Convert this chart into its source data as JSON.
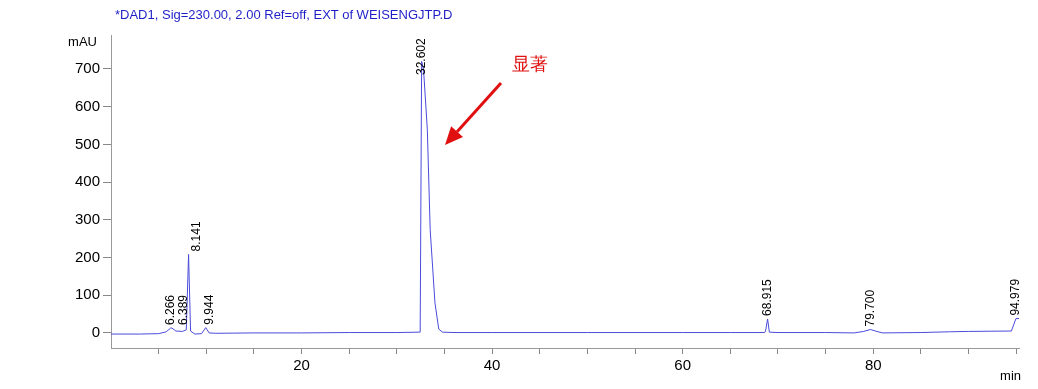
{
  "chart_data": {
    "type": "line",
    "title": "*DAD1, Sig=230.00, 2.00 Ref=off, EXT of WEISENGJTP.D",
    "xlabel": "min",
    "ylabel": "mAU",
    "x": [
      0,
      3,
      5,
      5.8,
      6.266,
      6.389,
      6.8,
      7.5,
      7.9,
      8.141,
      8.35,
      8.8,
      9.5,
      9.944,
      10.3,
      11,
      15,
      20,
      25,
      30,
      32.3,
      32.45,
      32.602,
      32.8,
      33.2,
      33.5,
      34.0,
      34.4,
      34.8,
      36,
      40,
      50,
      60,
      65,
      68.6,
      68.7,
      68.915,
      69.1,
      70,
      75,
      78,
      79.0,
      79.7,
      80.5,
      81,
      85,
      88,
      90,
      94.5,
      94.979,
      95.3
    ],
    "series": [
      {
        "color": "#4b4bdc",
        "values": [
          -3,
          -3,
          -2,
          3,
          13,
          13,
          5,
          4,
          8,
          208,
          5,
          -3,
          -2,
          14,
          0,
          -1,
          0,
          0,
          1,
          1,
          2,
          2,
          720,
          700,
          540,
          274,
          80,
          10,
          2,
          1,
          1,
          1,
          1,
          1,
          1,
          5,
          37,
          2,
          1,
          1,
          0,
          4,
          9,
          3,
          0,
          1,
          3,
          4,
          5,
          38,
          38
        ]
      }
    ],
    "xlim": [
      0,
      95.3
    ],
    "xticks": [
      {
        "value": 5,
        "label": null
      },
      {
        "value": 10,
        "label": null
      },
      {
        "value": 15,
        "label": null
      },
      20,
      {
        "value": 25,
        "label": null
      },
      {
        "value": 30,
        "label": null
      },
      {
        "value": 35,
        "label": null
      },
      40,
      {
        "value": 45,
        "label": null
      },
      {
        "value": 50,
        "label": null
      },
      {
        "value": 55,
        "label": null
      },
      60,
      {
        "value": 65,
        "label": null
      },
      {
        "value": 70,
        "label": null
      },
      {
        "value": 75,
        "label": null
      },
      80,
      {
        "value": 85,
        "label": null
      },
      {
        "value": 90,
        "label": null
      },
      {
        "value": 95,
        "label": null
      }
    ],
    "ylim": [
      -40,
      790
    ],
    "yticks": [
      0,
      100,
      200,
      300,
      400,
      500,
      600,
      700
    ],
    "annotations": [
      {
        "text": "6.266",
        "x": 6.266,
        "y": 13
      },
      {
        "text": "6.389",
        "x": 6.389,
        "y": 13
      },
      {
        "text": "8.141",
        "x": 8.141,
        "y": 208
      },
      {
        "text": "9.944",
        "x": 9.944,
        "y": 14
      },
      {
        "text": "32.602",
        "x": 32.602,
        "y": 720
      },
      {
        "text": "68.915",
        "x": 68.915,
        "y": 37
      },
      {
        "text": "79.700",
        "x": 79.7,
        "y": 9
      },
      {
        "text": "94.979",
        "x": 94.979,
        "y": 38
      },
      "显著"
    ]
  }
}
